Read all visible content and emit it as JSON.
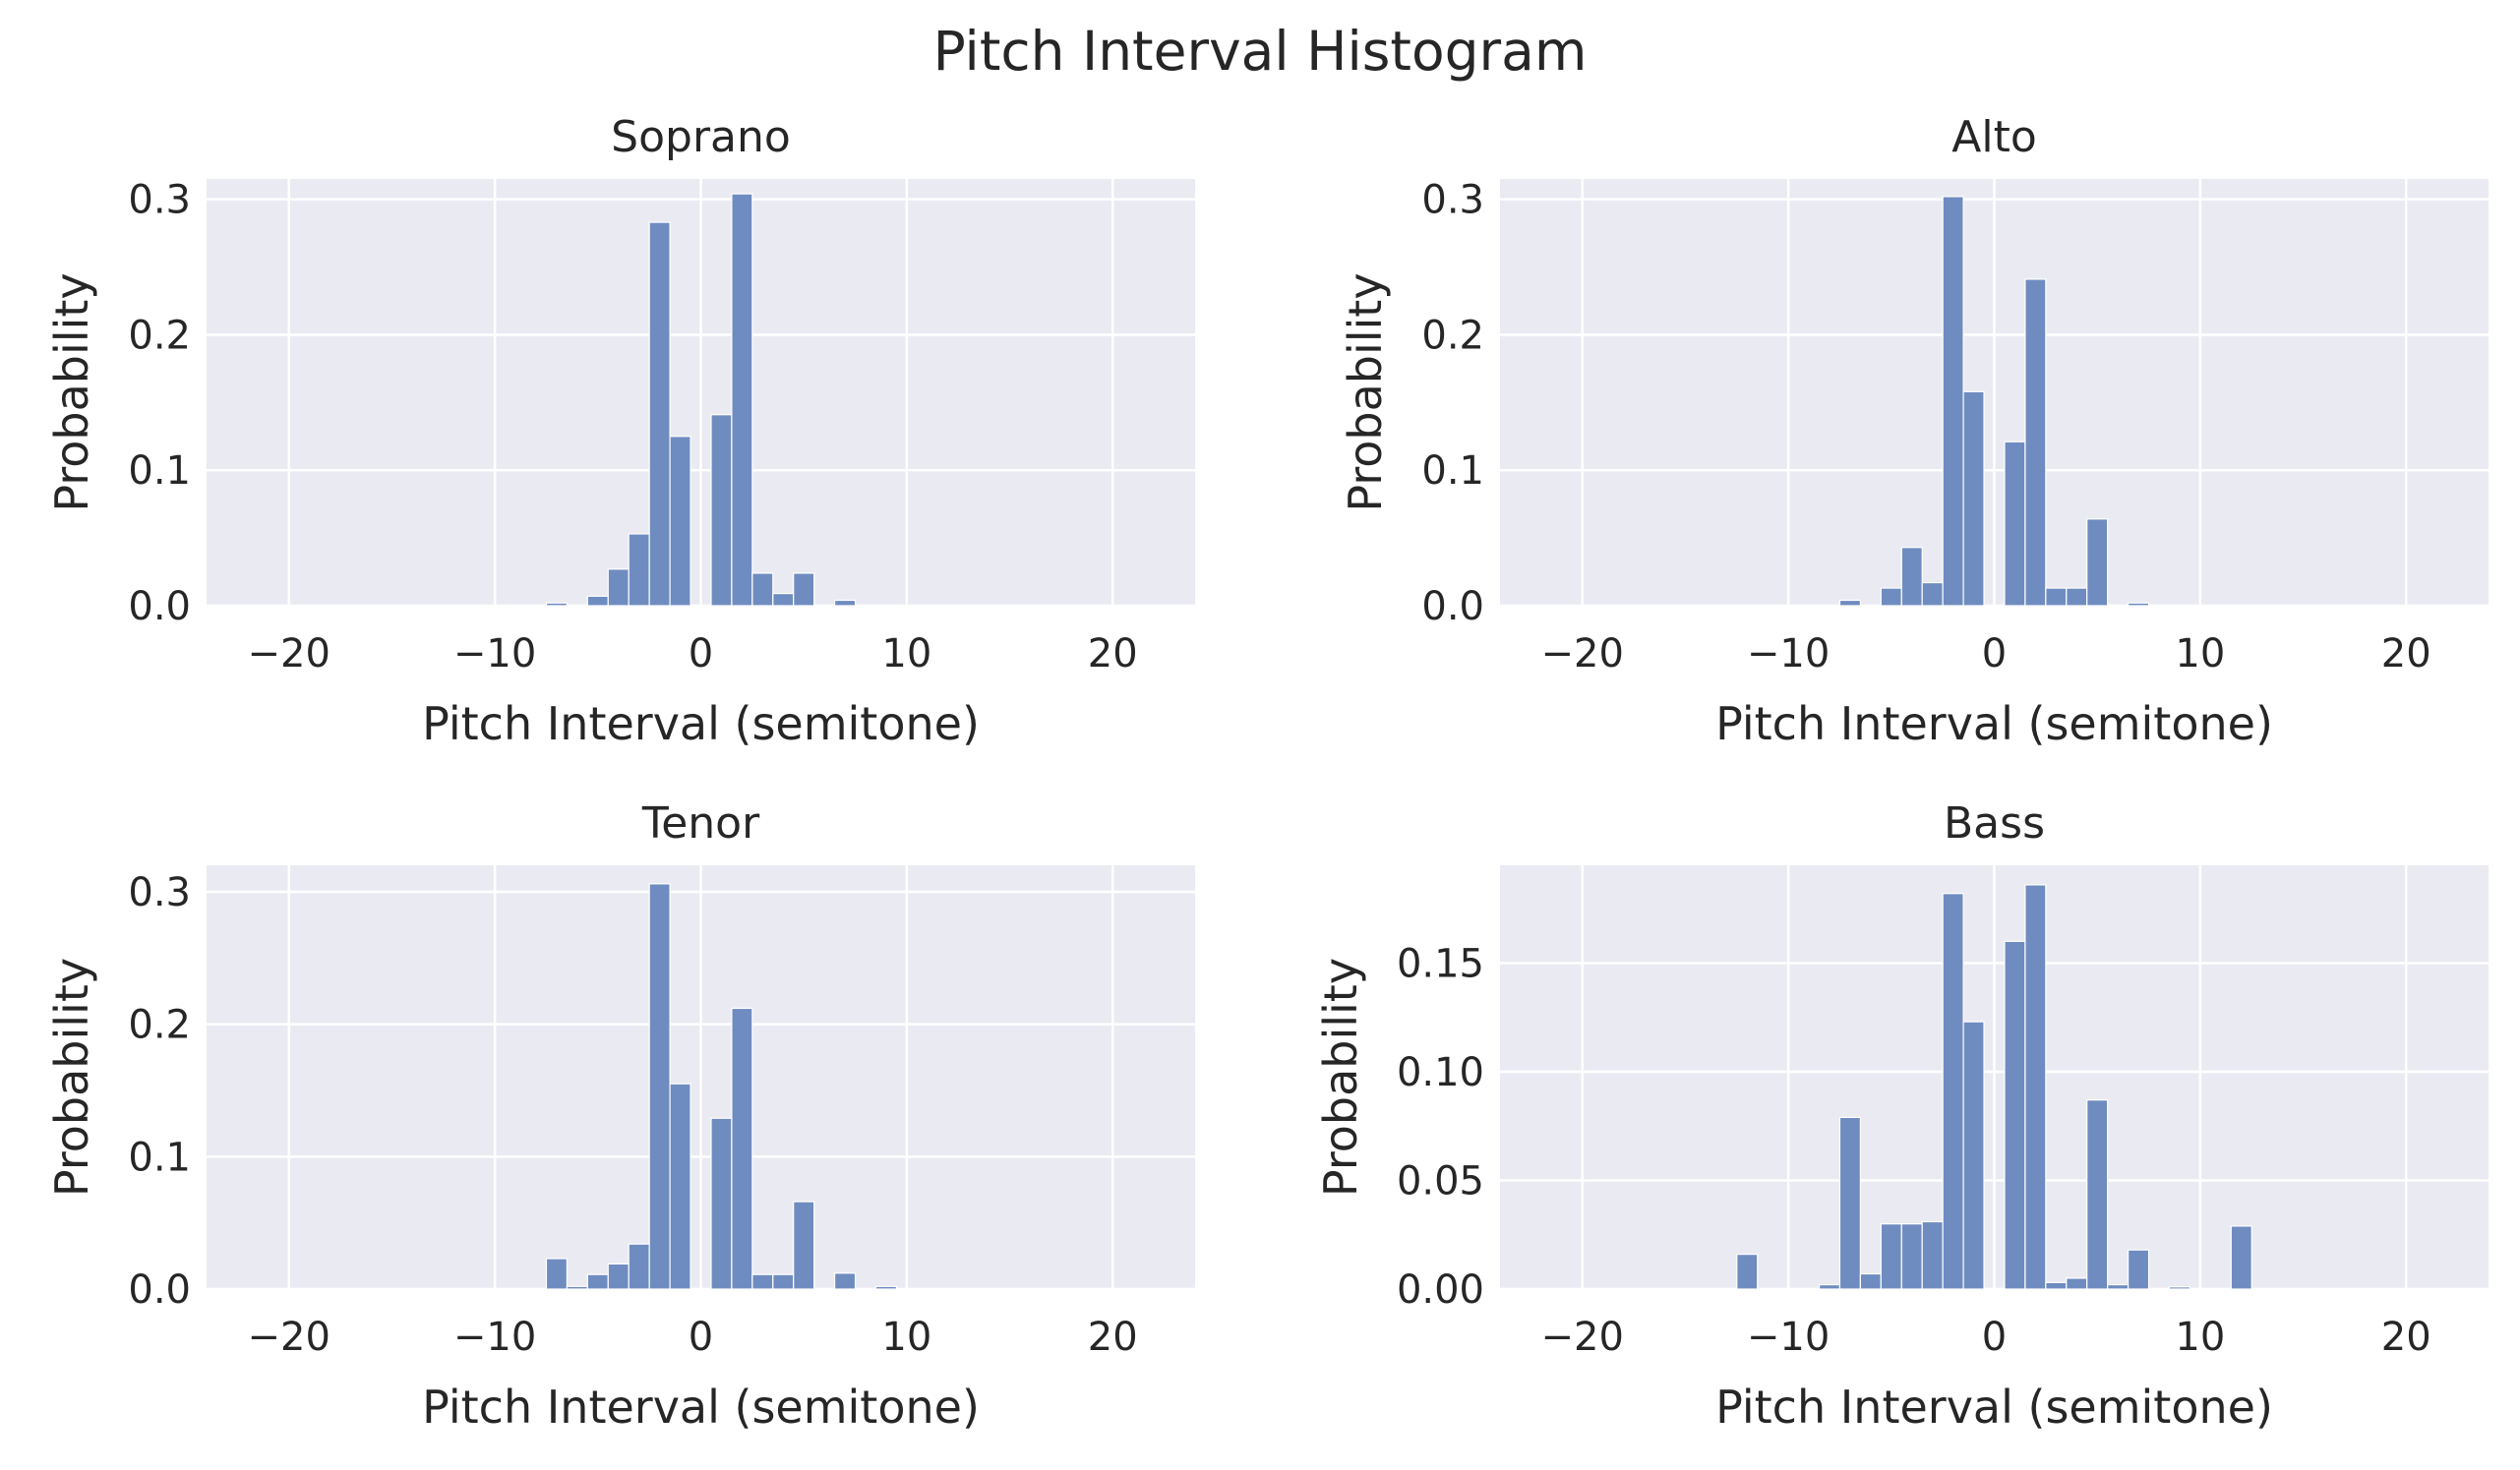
{
  "figure": {
    "title": "Pitch Interval Histogram"
  },
  "style": {
    "panel_bg": "#eaeaf2",
    "grid_color": "#ffffff",
    "bar_fill": "#6f8cc0",
    "bar_edge": "#ffffff",
    "text_color": "#262626"
  },
  "chart_data": [
    {
      "type": "bar",
      "title": "Soprano",
      "xlabel": "Pitch Interval (semitone)",
      "ylabel": "Probability",
      "xlim": [
        -24,
        24
      ],
      "ylim": [
        0,
        0.315
      ],
      "xticks": [
        -20,
        -10,
        0,
        10,
        20
      ],
      "xtick_labels": [
        "−20",
        "−10",
        "0",
        "10",
        "20"
      ],
      "yticks": [
        0,
        0.1,
        0.2,
        0.3
      ],
      "ytick_labels": [
        "0.0",
        "0.1",
        "0.2",
        "0.3"
      ],
      "grid": true,
      "bin_width": 1,
      "x": [
        -7,
        -5,
        -4,
        -3,
        -2,
        -1,
        1,
        2,
        3,
        4,
        5,
        7
      ],
      "values": [
        0.002,
        0.007,
        0.027,
        0.053,
        0.283,
        0.125,
        0.141,
        0.304,
        0.024,
        0.009,
        0.024,
        0.004
      ]
    },
    {
      "type": "bar",
      "title": "Alto",
      "xlabel": "Pitch Interval (semitone)",
      "ylabel": "Probability",
      "xlim": [
        -24,
        24
      ],
      "ylim": [
        0,
        0.315
      ],
      "xticks": [
        -20,
        -10,
        0,
        10,
        20
      ],
      "xtick_labels": [
        "−20",
        "−10",
        "0",
        "10",
        "20"
      ],
      "yticks": [
        0,
        0.1,
        0.2,
        0.3
      ],
      "ytick_labels": [
        "0.0",
        "0.1",
        "0.2",
        "0.3"
      ],
      "grid": true,
      "bin_width": 1,
      "x": [
        -7,
        -5,
        -4,
        -3,
        -2,
        -1,
        1,
        2,
        3,
        4,
        5,
        7
      ],
      "values": [
        0.004,
        0.013,
        0.043,
        0.017,
        0.302,
        0.158,
        0.121,
        0.241,
        0.013,
        0.013,
        0.064,
        0.002
      ]
    },
    {
      "type": "bar",
      "title": "Tenor",
      "xlabel": "Pitch Interval (semitone)",
      "ylabel": "Probability",
      "xlim": [
        -24,
        24
      ],
      "ylim": [
        0,
        0.32
      ],
      "xticks": [
        -20,
        -10,
        0,
        10,
        20
      ],
      "xtick_labels": [
        "−20",
        "−10",
        "0",
        "10",
        "20"
      ],
      "yticks": [
        0,
        0.1,
        0.2,
        0.3
      ],
      "ytick_labels": [
        "0.0",
        "0.1",
        "0.2",
        "0.3"
      ],
      "grid": true,
      "bin_width": 1,
      "x": [
        -7,
        -6,
        -5,
        -4,
        -3,
        -2,
        -1,
        1,
        2,
        3,
        4,
        5,
        7,
        9
      ],
      "values": [
        0.023,
        0.002,
        0.011,
        0.019,
        0.034,
        0.306,
        0.155,
        0.129,
        0.212,
        0.011,
        0.011,
        0.066,
        0.012,
        0.002
      ]
    },
    {
      "type": "bar",
      "title": "Bass",
      "xlabel": "Pitch Interval (semitone)",
      "ylabel": "Probability",
      "xlim": [
        -24,
        24
      ],
      "ylim": [
        0,
        0.195
      ],
      "xticks": [
        -20,
        -10,
        0,
        10,
        20
      ],
      "xtick_labels": [
        "−20",
        "−10",
        "0",
        "10",
        "20"
      ],
      "yticks": [
        0,
        0.05,
        0.1,
        0.15
      ],
      "ytick_labels": [
        "0.00",
        "0.05",
        "0.10",
        "0.15"
      ],
      "grid": true,
      "bin_width": 1,
      "x": [
        -12,
        -8,
        -7,
        -6,
        -5,
        -4,
        -3,
        -2,
        -1,
        1,
        2,
        3,
        4,
        5,
        6,
        7,
        9,
        12
      ],
      "values": [
        0.016,
        0.002,
        0.079,
        0.007,
        0.03,
        0.03,
        0.031,
        0.182,
        0.123,
        0.16,
        0.186,
        0.003,
        0.005,
        0.087,
        0.002,
        0.018,
        0.001,
        0.029
      ]
    }
  ]
}
